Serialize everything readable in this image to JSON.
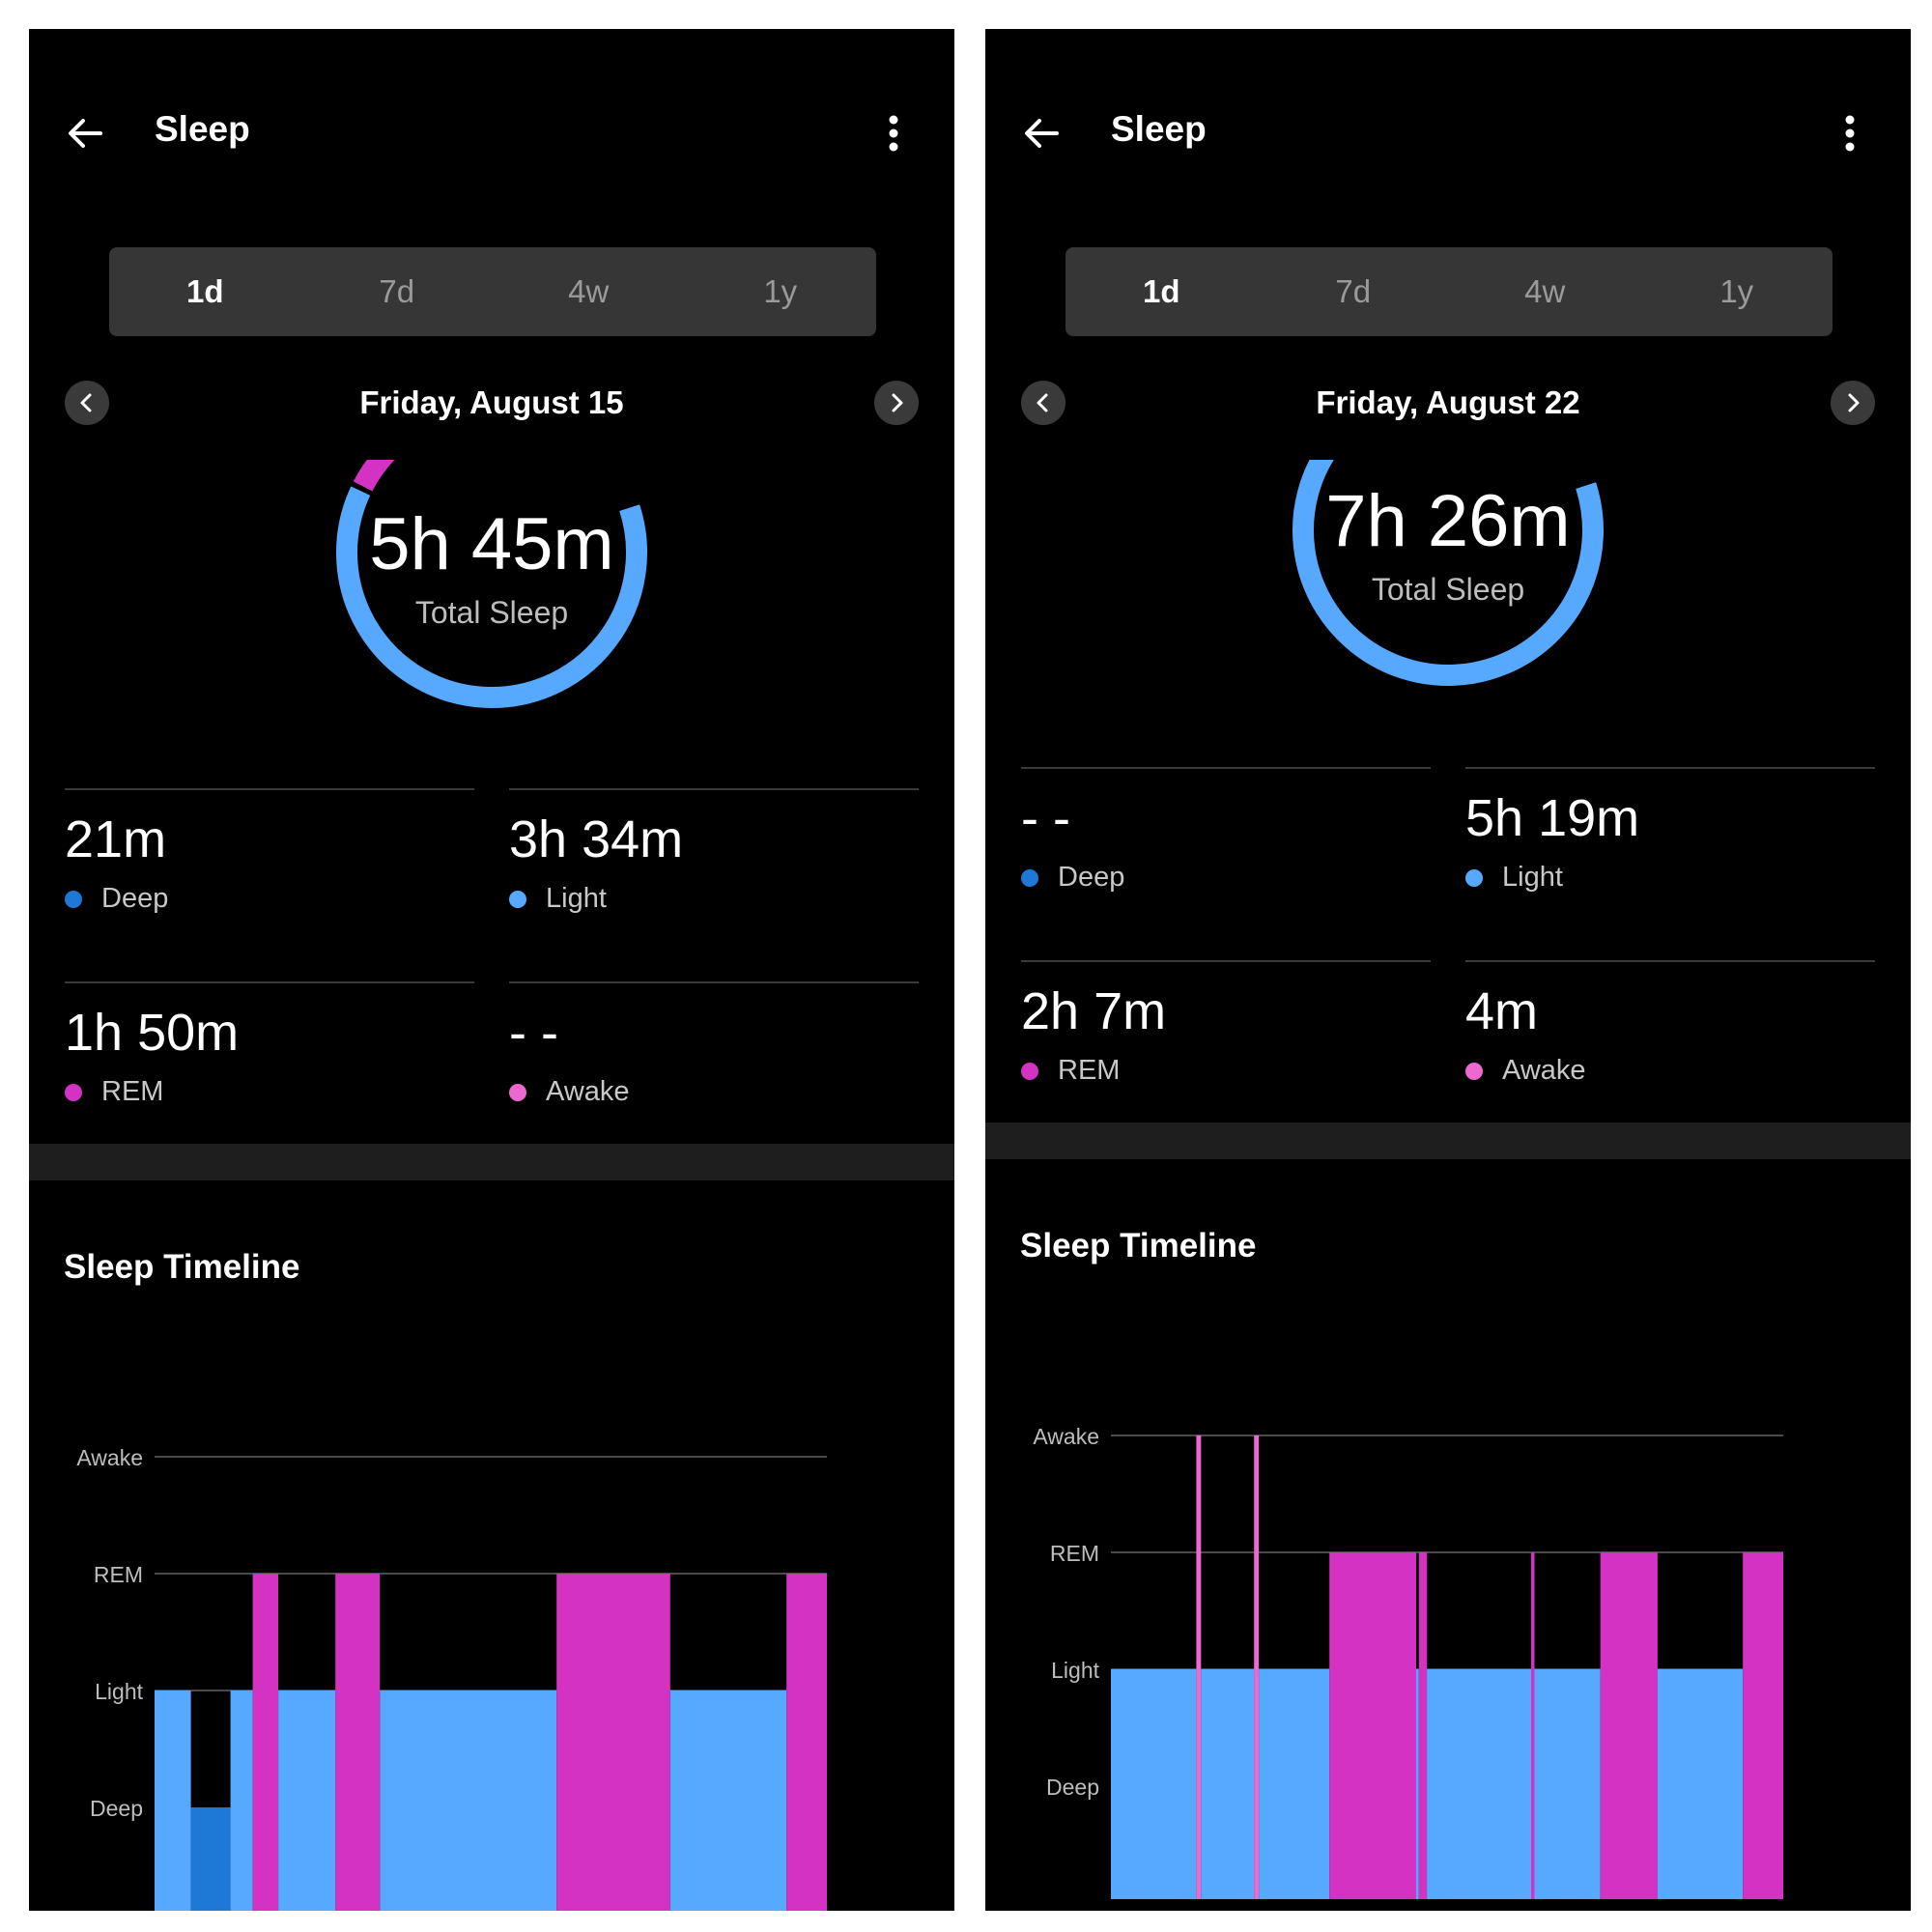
{
  "colors": {
    "deep": "#1e78d6",
    "light": "#57a9ff",
    "rem": "#d432c2",
    "awake": "#ee68d2",
    "background": "#000000",
    "grid": "#4a4a4a"
  },
  "panels": [
    {
      "header": {
        "title": "Sleep",
        "back_icon": "arrow-left-icon",
        "more_icon": "more-vertical-icon"
      },
      "range_tabs": [
        {
          "label": "1d",
          "active": true
        },
        {
          "label": "7d",
          "active": false
        },
        {
          "label": "4w",
          "active": false
        },
        {
          "label": "1y",
          "active": false
        }
      ],
      "date": "Friday, August 15",
      "total": {
        "value": "5h 45m",
        "label": "Total Sleep"
      },
      "ring": {
        "rem_fraction": 0.32,
        "light_fraction": 0.62
      },
      "stats": [
        {
          "value": "21m",
          "label": "Deep",
          "stage": "deep"
        },
        {
          "value": "3h 34m",
          "label": "Light",
          "stage": "light"
        },
        {
          "value": "1h 50m",
          "label": "REM",
          "stage": "rem"
        },
        {
          "value": "- -",
          "label": "Awake",
          "stage": "awake"
        }
      ],
      "timeline": {
        "title": "Sleep Timeline",
        "levels": [
          "Awake",
          "REM",
          "Light",
          "Deep"
        ],
        "segments": [
          {
            "stage": "light",
            "start": 0.0,
            "end": 0.054
          },
          {
            "stage": "deep",
            "start": 0.054,
            "end": 0.113
          },
          {
            "stage": "light",
            "start": 0.113,
            "end": 0.146
          },
          {
            "stage": "rem",
            "start": 0.146,
            "end": 0.184
          },
          {
            "stage": "light",
            "start": 0.184,
            "end": 0.269
          },
          {
            "stage": "rem",
            "start": 0.269,
            "end": 0.335
          },
          {
            "stage": "light",
            "start": 0.335,
            "end": 0.598
          },
          {
            "stage": "rem",
            "start": 0.598,
            "end": 0.767
          },
          {
            "stage": "light",
            "start": 0.767,
            "end": 0.94
          },
          {
            "stage": "rem",
            "start": 0.94,
            "end": 1.0
          }
        ]
      }
    },
    {
      "header": {
        "title": "Sleep",
        "back_icon": "arrow-left-icon",
        "more_icon": "more-vertical-icon"
      },
      "range_tabs": [
        {
          "label": "1d",
          "active": true
        },
        {
          "label": "7d",
          "active": false
        },
        {
          "label": "4w",
          "active": false
        },
        {
          "label": "1y",
          "active": false
        }
      ],
      "date": "Friday, August 22",
      "total": {
        "value": "7h 26m",
        "label": "Total Sleep"
      },
      "ring": {
        "rem_fraction": 0.28,
        "light_fraction": 0.71
      },
      "stats": [
        {
          "value": "- -",
          "label": "Deep",
          "stage": "deep"
        },
        {
          "value": "5h 19m",
          "label": "Light",
          "stage": "light"
        },
        {
          "value": "2h 7m",
          "label": "REM",
          "stage": "rem"
        },
        {
          "value": "4m",
          "label": "Awake",
          "stage": "awake"
        }
      ],
      "timeline": {
        "title": "Sleep Timeline",
        "levels": [
          "Awake",
          "REM",
          "Light",
          "Deep"
        ],
        "segments": [
          {
            "stage": "light",
            "start": 0.0,
            "end": 0.127
          },
          {
            "stage": "awake",
            "start": 0.127,
            "end": 0.134
          },
          {
            "stage": "light",
            "start": 0.134,
            "end": 0.213
          },
          {
            "stage": "awake",
            "start": 0.213,
            "end": 0.22
          },
          {
            "stage": "light",
            "start": 0.22,
            "end": 0.325
          },
          {
            "stage": "rem",
            "start": 0.325,
            "end": 0.454
          },
          {
            "stage": "light",
            "start": 0.454,
            "end": 0.458
          },
          {
            "stage": "rem",
            "start": 0.458,
            "end": 0.47
          },
          {
            "stage": "light",
            "start": 0.47,
            "end": 0.625
          },
          {
            "stage": "rem",
            "start": 0.625,
            "end": 0.63
          },
          {
            "stage": "light",
            "start": 0.63,
            "end": 0.728
          },
          {
            "stage": "rem",
            "start": 0.728,
            "end": 0.813
          },
          {
            "stage": "light",
            "start": 0.813,
            "end": 0.94
          },
          {
            "stage": "rem",
            "start": 0.94,
            "end": 1.0
          }
        ]
      }
    }
  ]
}
